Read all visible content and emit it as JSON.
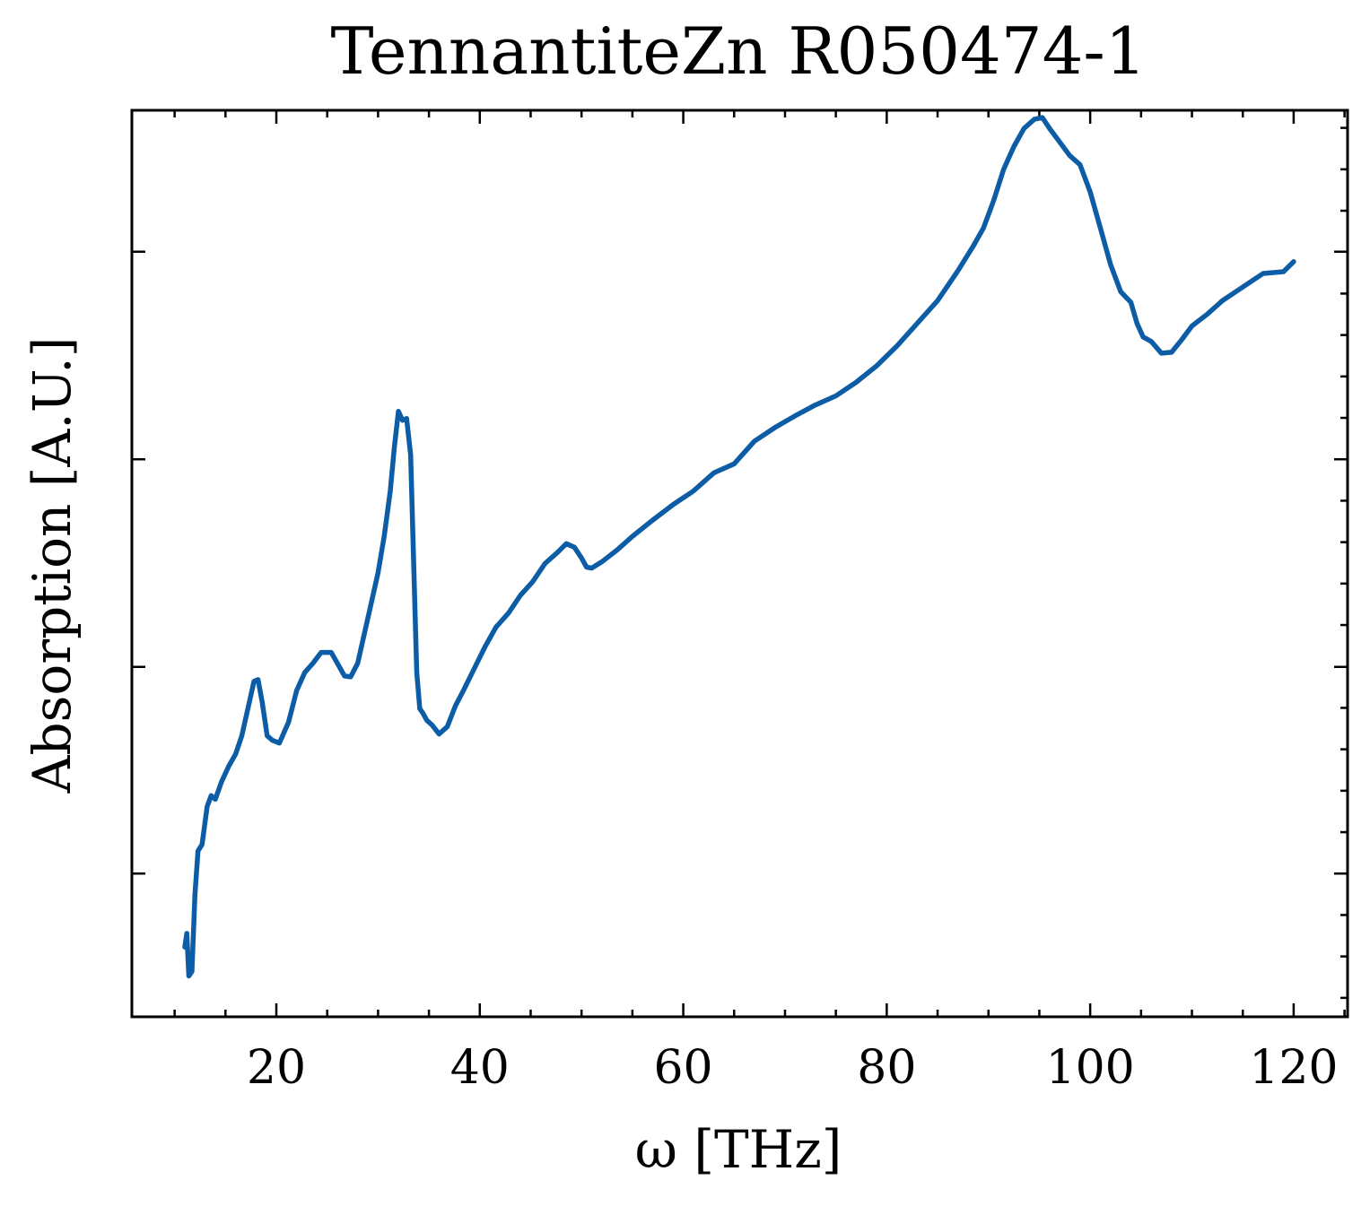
{
  "chart_data": {
    "type": "line",
    "title": "TennantiteZn R050474-1",
    "xlabel": "ω [THz]",
    "ylabel": "Absorption [A.U.]",
    "xlim": [
      5.8,
      125.3
    ],
    "ylim": [
      0,
      1
    ],
    "x_ticks": [
      20,
      40,
      60,
      80,
      100,
      120
    ],
    "x_minor_step": 5,
    "y_major_ticks": [
      0.158,
      0.386,
      0.615,
      0.844
    ],
    "y_minor_step": 0.0457,
    "y_ticks_labeled": false,
    "grid": false,
    "legend": "none",
    "series": [
      {
        "color": "#0c5da5",
        "x": [
          11.0,
          11.2,
          11.4,
          11.7,
          12.0,
          12.3,
          12.7,
          13.2,
          13.6,
          14.0,
          14.6,
          15.3,
          16.0,
          16.6,
          17.2,
          17.8,
          18.2,
          18.6,
          19.1,
          19.6,
          20.3,
          21.2,
          22.0,
          22.8,
          23.6,
          24.4,
          25.4,
          26.0,
          26.7,
          27.3,
          28.0,
          28.6,
          29.3,
          30.0,
          30.6,
          31.2,
          31.6,
          32.0,
          32.4,
          32.8,
          33.2,
          33.5,
          33.8,
          34.1,
          34.4,
          34.8,
          35.3,
          36.0,
          36.8,
          37.6,
          38.4,
          39.4,
          40.5,
          41.6,
          42.8,
          44.0,
          45.2,
          46.4,
          47.6,
          48.5,
          49.3,
          50.0,
          50.5,
          51.0,
          52.0,
          53.5,
          55.0,
          57.0,
          59.0,
          61.0,
          63.0,
          65.0,
          67.0,
          69.0,
          71.0,
          73.0,
          75.0,
          77.0,
          79.0,
          81.0,
          83.0,
          85.0,
          87.0,
          88.5,
          89.5,
          90.5,
          91.5,
          92.5,
          93.5,
          94.5,
          95.3,
          96.0,
          97.0,
          98.0,
          99.0,
          100.0,
          101.0,
          102.0,
          103.0,
          104.0,
          104.6,
          105.2,
          106.0,
          107.0,
          108.0,
          109.0,
          110.0,
          111.5,
          113.0,
          115.0,
          117.0,
          119.0,
          120.0
        ],
        "y": [
          0.077,
          0.092,
          0.045,
          0.05,
          0.135,
          0.183,
          0.19,
          0.232,
          0.244,
          0.24,
          0.259,
          0.276,
          0.29,
          0.31,
          0.34,
          0.37,
          0.372,
          0.348,
          0.31,
          0.305,
          0.302,
          0.325,
          0.36,
          0.38,
          0.39,
          0.402,
          0.402,
          0.39,
          0.376,
          0.375,
          0.39,
          0.42,
          0.455,
          0.49,
          0.53,
          0.58,
          0.628,
          0.668,
          0.658,
          0.66,
          0.62,
          0.5,
          0.38,
          0.34,
          0.335,
          0.327,
          0.322,
          0.312,
          0.32,
          0.343,
          0.36,
          0.383,
          0.408,
          0.43,
          0.445,
          0.465,
          0.48,
          0.5,
          0.512,
          0.522,
          0.518,
          0.506,
          0.496,
          0.495,
          0.502,
          0.515,
          0.53,
          0.548,
          0.565,
          0.58,
          0.6,
          0.61,
          0.635,
          0.65,
          0.663,
          0.675,
          0.685,
          0.7,
          0.718,
          0.74,
          0.765,
          0.79,
          0.823,
          0.85,
          0.87,
          0.9,
          0.935,
          0.96,
          0.98,
          0.99,
          0.992,
          0.98,
          0.965,
          0.95,
          0.94,
          0.91,
          0.87,
          0.83,
          0.8,
          0.788,
          0.765,
          0.75,
          0.745,
          0.732,
          0.733,
          0.747,
          0.762,
          0.775,
          0.79,
          0.805,
          0.82,
          0.822,
          0.833
        ]
      }
    ]
  }
}
